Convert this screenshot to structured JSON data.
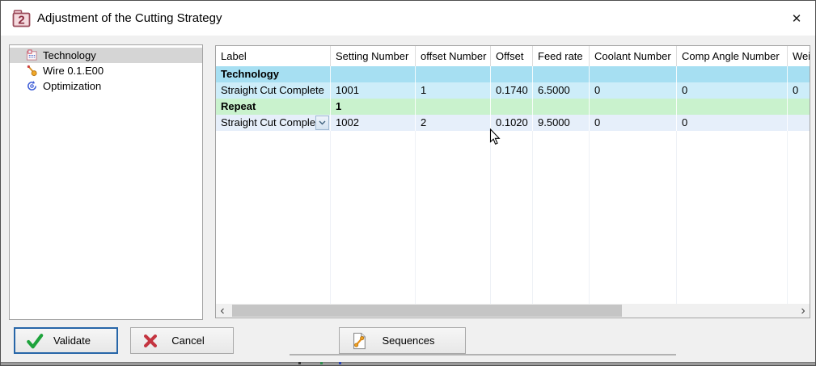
{
  "window": {
    "title": "Adjustment of the Cutting Strategy",
    "close_glyph": "✕"
  },
  "tree": {
    "items": [
      {
        "label": "Technology",
        "selected": true
      },
      {
        "label": "Wire 0.1.E00",
        "selected": false
      },
      {
        "label": "Optimization",
        "selected": false
      }
    ]
  },
  "table": {
    "headers": [
      "Label",
      "Setting Number",
      "offset Number",
      "Offset",
      "Feed rate",
      "Coolant Number",
      "Comp Angle Number",
      "Weig"
    ],
    "rows": [
      {
        "style": "r-blue1",
        "bold": true,
        "dropdown": false,
        "cells": [
          "Technology",
          "",
          "",
          "",
          "",
          "",
          "",
          ""
        ]
      },
      {
        "style": "r-blue2",
        "bold": false,
        "dropdown": false,
        "cells": [
          "Straight Cut Complete",
          "1001",
          "1",
          "0.1740",
          "6.5000",
          "0",
          "0",
          "0"
        ]
      },
      {
        "style": "r-green",
        "bold": true,
        "dropdown": false,
        "cells": [
          "Repeat",
          "1",
          "",
          "",
          "",
          "",
          "",
          ""
        ]
      },
      {
        "style": "r-blue3",
        "bold": false,
        "dropdown": true,
        "cells": [
          "Straight Cut Complete",
          "1002",
          "2",
          "0.1020",
          "9.5000",
          "0",
          "0",
          ""
        ]
      }
    ],
    "empty_rows": 11
  },
  "scrollbar": {
    "left_glyph": "‹",
    "right_glyph": "›"
  },
  "buttons": {
    "validate": "Validate",
    "cancel": "Cancel",
    "sequences": "Sequences"
  },
  "colors": {
    "group_row_blue": "#a6dff2",
    "data_row_blue": "#cdedf9",
    "group_row_green": "#c9f2cd",
    "data_row_light_blue": "#e6effa",
    "validate_border": "#2766a8",
    "check_green": "#1ea33c",
    "cross_red": "#c43440",
    "icon_orange": "#f0a020"
  }
}
